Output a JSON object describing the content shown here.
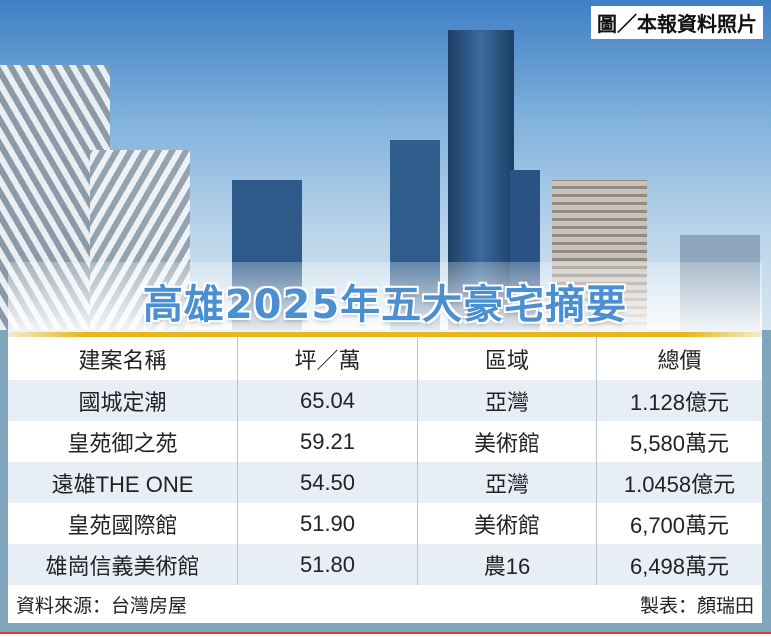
{
  "credit": "圖／本報資料照片",
  "title": "高雄2025年五大豪宅摘要",
  "table": {
    "headers": [
      "建案名稱",
      "坪／萬",
      "區域",
      "總價"
    ],
    "rows": [
      [
        "國城定潮",
        "65.04",
        "亞灣",
        "1.128億元"
      ],
      [
        "皇苑御之苑",
        "59.21",
        "美術館",
        "5,580萬元"
      ],
      [
        "遠雄THE ONE",
        "54.50",
        "亞灣",
        "1.0458億元"
      ],
      [
        "皇苑國際館",
        "51.90",
        "美術館",
        "6,700萬元"
      ],
      [
        "雄崗信義美術館",
        "51.80",
        "農16",
        "6,498萬元"
      ]
    ]
  },
  "source": "資料來源：台灣房屋",
  "maker": "製表：顏瑞田",
  "colors": {
    "title": "#4b8fd3",
    "frame": "#7fa6bd",
    "accent_line": "#e6b81e",
    "alt_row": "#e8eef5"
  }
}
